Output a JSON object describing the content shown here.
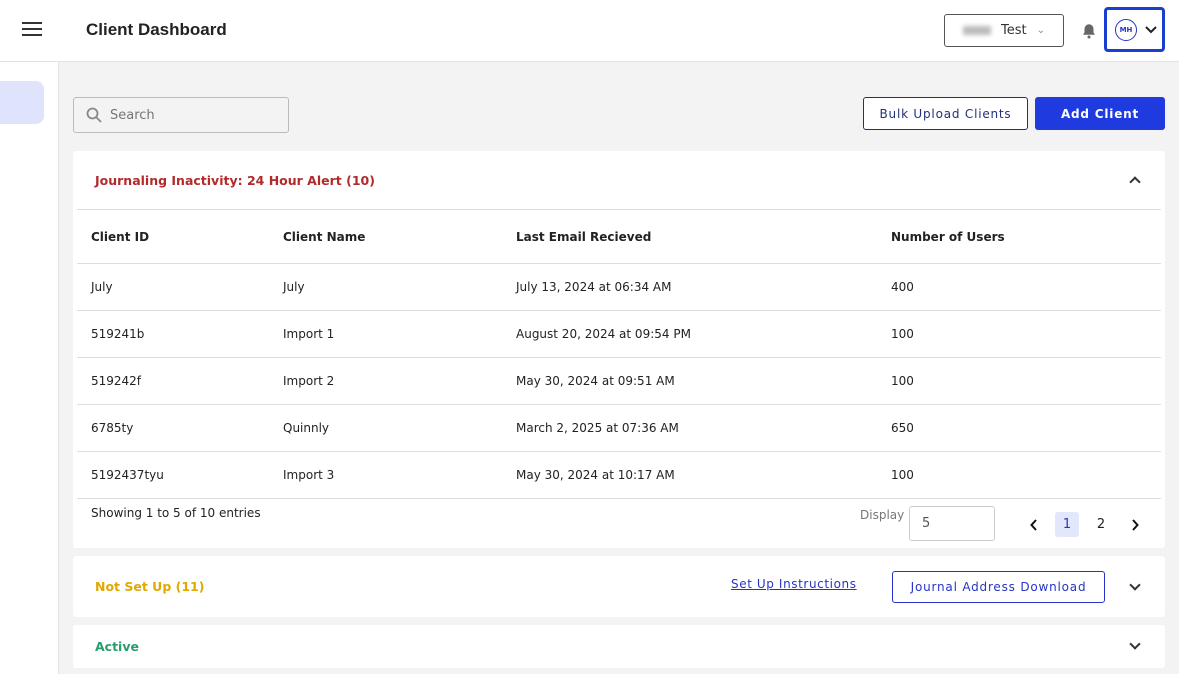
{
  "header": {
    "title": "Client Dashboard",
    "tenant": "Test",
    "user_initials": "MH"
  },
  "toolbar": {
    "search_placeholder": "Search",
    "bulk_upload": "Bulk Upload Clients",
    "add_client": "Add Client"
  },
  "inactivity": {
    "title": "Journaling Inactivity: 24 Hour Alert (10)",
    "color": "#b22b2b",
    "columns": [
      "Client ID",
      "Client Name",
      "Last Email Recieved",
      "Number of Users"
    ],
    "rows": [
      [
        "July",
        "July",
        "July 13, 2024 at 06:34 AM",
        "400"
      ],
      [
        "519241b",
        "Import 1",
        "August 20, 2024 at 09:54 PM",
        "100"
      ],
      [
        "519242f",
        "Import 2",
        "May 30, 2024 at 09:51 AM",
        "100"
      ],
      [
        "6785ty",
        "Quinnly",
        "March 2, 2025 at 07:36 AM",
        "650"
      ],
      [
        "5192437tyu",
        "Import 3",
        "May 30, 2024 at 10:17 AM",
        "100"
      ]
    ],
    "showing": "Showing 1 to 5 of 10 entries",
    "display_label": "Display",
    "display_value": "5",
    "pages": [
      "1",
      "2"
    ],
    "current_page": "1"
  },
  "not_set_up": {
    "title": "Not Set Up (11)",
    "color": "#e0a800",
    "instructions": "Set Up Instructions",
    "download": "Journal Address Download"
  },
  "active": {
    "title": "Active",
    "color": "#2a9d6e"
  }
}
